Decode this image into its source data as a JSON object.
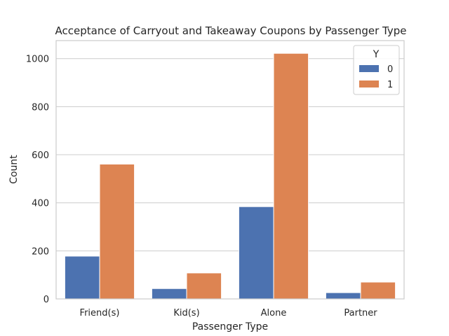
{
  "chart_data": {
    "type": "bar",
    "title": "Acceptance of Carryout and Takeaway Coupons by Passenger Type",
    "xlabel": "Passenger Type",
    "ylabel": "Count",
    "categories": [
      "Friend(s)",
      "Kid(s)",
      "Alone",
      "Partner"
    ],
    "series": [
      {
        "name": "0",
        "values": [
          178,
          43,
          384,
          26
        ],
        "color": "#4c72b0"
      },
      {
        "name": "1",
        "values": [
          561,
          108,
          1022,
          70
        ],
        "color": "#dd8452"
      }
    ],
    "ylim": [
      0,
      1075
    ],
    "yticks": [
      0,
      200,
      400,
      600,
      800,
      1000
    ],
    "grid": true,
    "legend": {
      "title": "Y",
      "position": "top-right"
    }
  }
}
